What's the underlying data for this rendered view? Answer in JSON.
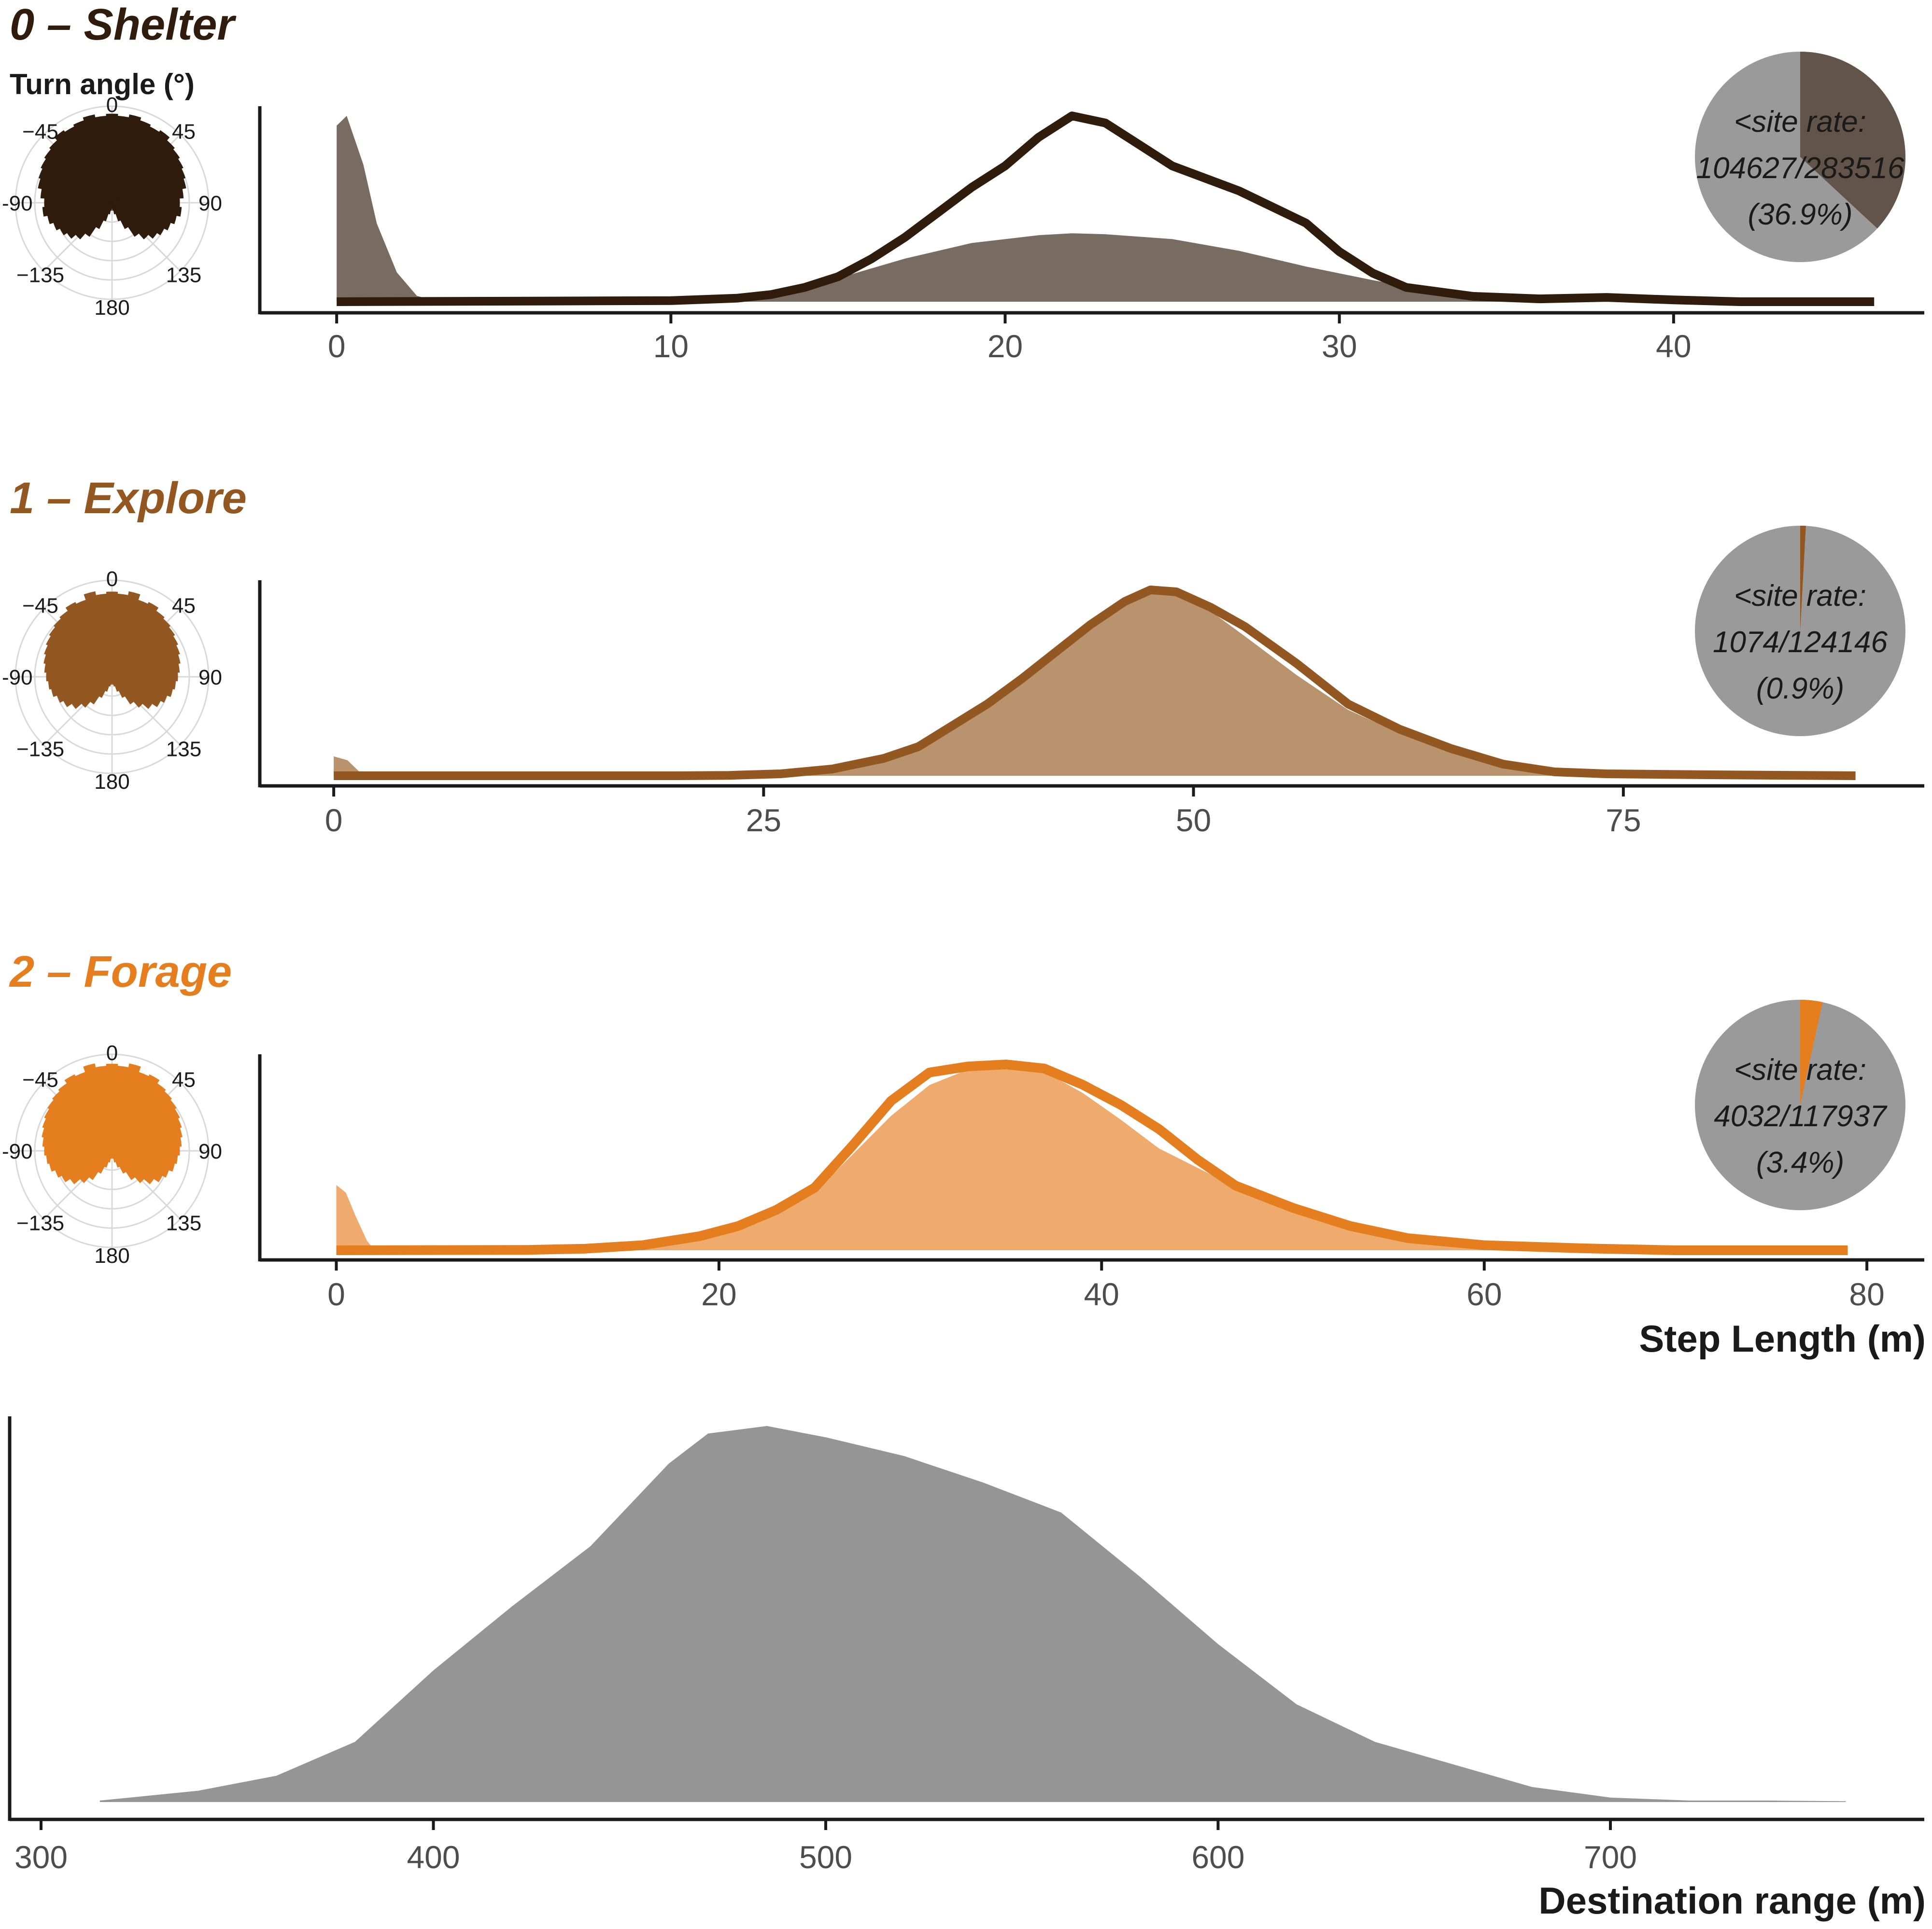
{
  "colors": {
    "shelter": "#2f1c0c",
    "explore": "#935721",
    "forage": "#e57e1e",
    "pie_grey": "#9a9a9a",
    "range_grey": "#959595",
    "axis": "#1a1a1a",
    "grid": "#d9d9d9"
  },
  "polar_header": "Turn angle (°)",
  "polar_ticks": [
    "0",
    "45",
    "90",
    "135",
    "180",
    "−135",
    "-90",
    "−45"
  ],
  "step_axis_label": "Step Length (m)",
  "chart_data": [
    {
      "type": "area",
      "id": "shelter",
      "title": "0 – Shelter",
      "xlabel": "Step Length (m)",
      "xlim": [
        -2.3,
        47.5
      ],
      "xticks": [
        0,
        10,
        20,
        30,
        40
      ],
      "fill_density": [
        [
          0,
          0.9
        ],
        [
          0.3,
          0.95
        ],
        [
          0.8,
          0.7
        ],
        [
          1.2,
          0.4
        ],
        [
          1.8,
          0.15
        ],
        [
          2.4,
          0.03
        ],
        [
          3,
          0
        ],
        [
          9,
          0
        ],
        [
          11,
          0.01
        ],
        [
          13,
          0.04
        ],
        [
          15,
          0.12
        ],
        [
          17,
          0.22
        ],
        [
          19,
          0.3
        ],
        [
          21,
          0.34
        ],
        [
          22,
          0.35
        ],
        [
          23,
          0.345
        ],
        [
          25,
          0.32
        ],
        [
          27,
          0.26
        ],
        [
          29,
          0.18
        ],
        [
          31,
          0.11
        ],
        [
          33,
          0.05
        ],
        [
          35,
          0.02
        ],
        [
          37,
          0.008
        ],
        [
          40,
          0
        ],
        [
          46,
          0
        ]
      ],
      "line_density": [
        [
          0,
          0
        ],
        [
          10,
          0.003
        ],
        [
          12,
          0.01
        ],
        [
          13,
          0.02
        ],
        [
          14,
          0.04
        ],
        [
          15,
          0.07
        ],
        [
          16,
          0.12
        ],
        [
          17,
          0.18
        ],
        [
          18,
          0.25
        ],
        [
          19,
          0.32
        ],
        [
          20,
          0.38
        ],
        [
          21,
          0.46
        ],
        [
          22,
          0.52
        ],
        [
          23,
          0.5
        ],
        [
          24,
          0.44
        ],
        [
          25,
          0.38
        ],
        [
          27,
          0.31
        ],
        [
          29,
          0.22
        ],
        [
          30,
          0.14
        ],
        [
          31,
          0.08
        ],
        [
          32,
          0.04
        ],
        [
          34,
          0.015
        ],
        [
          36,
          0.008
        ],
        [
          38,
          0.012
        ],
        [
          40,
          0.005
        ],
        [
          42,
          0
        ],
        [
          46,
          0
        ]
      ],
      "pie": {
        "label_lines": [
          "<site rate:",
          "104627/283516",
          "(36.9%)"
        ],
        "numerator": 104627,
        "denominator": 283516,
        "percent": 36.9
      },
      "polar_radii": [
        0.92,
        0.9,
        0.93,
        0.9,
        0.88,
        0.9,
        0.86,
        0.84,
        0.82,
        0.8,
        0.78,
        0.74,
        0.7,
        0.72,
        0.68,
        0.64,
        0.6,
        0.56,
        0.5,
        0.42,
        0.3,
        0.2,
        0.12,
        0.08,
        0.06,
        0.08,
        0.12,
        0.2,
        0.3,
        0.42,
        0.5,
        0.56,
        0.6,
        0.64,
        0.68,
        0.72,
        0.7,
        0.74,
        0.78,
        0.8,
        0.82,
        0.84,
        0.86,
        0.9,
        0.88,
        0.9,
        0.93,
        0.9
      ]
    },
    {
      "type": "area",
      "id": "explore",
      "title": "1 – Explore",
      "xlabel": "Step Length (m)",
      "xlim": [
        -4.3,
        92.5
      ],
      "xticks": [
        0,
        25,
        50,
        75
      ],
      "fill_density": [
        [
          0,
          0.1
        ],
        [
          0.8,
          0.08
        ],
        [
          1.5,
          0.02
        ],
        [
          2,
          0
        ],
        [
          24,
          0
        ],
        [
          26,
          0.01
        ],
        [
          28,
          0.03
        ],
        [
          31,
          0.08
        ],
        [
          34,
          0.17
        ],
        [
          37,
          0.32
        ],
        [
          40,
          0.52
        ],
        [
          43,
          0.7
        ],
        [
          45,
          0.83
        ],
        [
          47,
          0.93
        ],
        [
          48,
          0.96
        ],
        [
          49,
          0.94
        ],
        [
          51,
          0.85
        ],
        [
          53,
          0.72
        ],
        [
          56,
          0.52
        ],
        [
          59,
          0.34
        ],
        [
          62,
          0.22
        ],
        [
          65,
          0.13
        ],
        [
          68,
          0.06
        ],
        [
          71,
          0.02
        ],
        [
          75,
          0.005
        ],
        [
          80,
          0
        ],
        [
          88.5,
          0
        ]
      ],
      "line_density": [
        [
          0,
          0
        ],
        [
          20,
          0
        ],
        [
          23,
          0.002
        ],
        [
          26,
          0.01
        ],
        [
          29,
          0.035
        ],
        [
          32,
          0.09
        ],
        [
          34,
          0.15
        ],
        [
          36,
          0.26
        ],
        [
          38,
          0.37
        ],
        [
          40,
          0.5
        ],
        [
          42,
          0.64
        ],
        [
          44,
          0.78
        ],
        [
          46,
          0.9
        ],
        [
          47.5,
          0.96
        ],
        [
          49,
          0.95
        ],
        [
          51,
          0.87
        ],
        [
          53,
          0.77
        ],
        [
          56,
          0.58
        ],
        [
          59,
          0.37
        ],
        [
          62,
          0.24
        ],
        [
          65,
          0.14
        ],
        [
          68,
          0.06
        ],
        [
          71,
          0.02
        ],
        [
          74,
          0.01
        ],
        [
          80,
          0.005
        ],
        [
          88.5,
          0
        ]
      ],
      "pie": {
        "label_lines": [
          "<site rate:",
          "1074/124146",
          "(0.9%)"
        ],
        "numerator": 1074,
        "denominator": 124146,
        "percent": 0.9
      },
      "polar_radii": [
        0.88,
        0.86,
        0.9,
        0.84,
        0.86,
        0.82,
        0.8,
        0.78,
        0.76,
        0.74,
        0.72,
        0.7,
        0.68,
        0.66,
        0.64,
        0.6,
        0.56,
        0.5,
        0.42,
        0.34,
        0.24,
        0.16,
        0.1,
        0.08,
        0.07,
        0.08,
        0.1,
        0.16,
        0.24,
        0.34,
        0.42,
        0.5,
        0.56,
        0.6,
        0.64,
        0.66,
        0.68,
        0.7,
        0.72,
        0.74,
        0.76,
        0.78,
        0.8,
        0.82,
        0.86,
        0.84,
        0.9,
        0.86
      ]
    },
    {
      "type": "area",
      "id": "forage",
      "title": "2 – Forage",
      "xlabel": "Step Length (m)",
      "xlim": [
        -4,
        83
      ],
      "xticks": [
        0,
        20,
        40,
        60,
        80
      ],
      "fill_density": [
        [
          0,
          0.34
        ],
        [
          0.5,
          0.3
        ],
        [
          1,
          0.18
        ],
        [
          1.6,
          0.05
        ],
        [
          2,
          0
        ],
        [
          10,
          0
        ],
        [
          13,
          0.005
        ],
        [
          16,
          0.02
        ],
        [
          19,
          0.06
        ],
        [
          22,
          0.14
        ],
        [
          25,
          0.3
        ],
        [
          27,
          0.5
        ],
        [
          29,
          0.7
        ],
        [
          31,
          0.86
        ],
        [
          33,
          0.94
        ],
        [
          35,
          0.97
        ],
        [
          37,
          0.93
        ],
        [
          39,
          0.82
        ],
        [
          41,
          0.68
        ],
        [
          43,
          0.53
        ],
        [
          46,
          0.38
        ],
        [
          49,
          0.26
        ],
        [
          52,
          0.15
        ],
        [
          55,
          0.08
        ],
        [
          58,
          0.04
        ],
        [
          62,
          0.015
        ],
        [
          66,
          0.005
        ],
        [
          70,
          0
        ],
        [
          79,
          0
        ]
      ],
      "line_density": [
        [
          0,
          0
        ],
        [
          10,
          0.002
        ],
        [
          13,
          0.008
        ],
        [
          16,
          0.025
        ],
        [
          19,
          0.07
        ],
        [
          21,
          0.12
        ],
        [
          23,
          0.2
        ],
        [
          25,
          0.31
        ],
        [
          27,
          0.52
        ],
        [
          29,
          0.74
        ],
        [
          31,
          0.88
        ],
        [
          33,
          0.91
        ],
        [
          35,
          0.92
        ],
        [
          37,
          0.9
        ],
        [
          39,
          0.82
        ],
        [
          41,
          0.72
        ],
        [
          43,
          0.6
        ],
        [
          45,
          0.45
        ],
        [
          47,
          0.32
        ],
        [
          50,
          0.21
        ],
        [
          53,
          0.12
        ],
        [
          56,
          0.06
        ],
        [
          60,
          0.025
        ],
        [
          65,
          0.01
        ],
        [
          70,
          0
        ],
        [
          79,
          0
        ]
      ],
      "pie": {
        "label_lines": [
          "<site rate:",
          "4032/117937",
          "(3.4%)"
        ],
        "numerator": 4032,
        "denominator": 117937,
        "percent": 3.4
      },
      "polar_radii": [
        0.9,
        0.88,
        0.92,
        0.86,
        0.88,
        0.84,
        0.82,
        0.8,
        0.78,
        0.76,
        0.74,
        0.72,
        0.7,
        0.68,
        0.66,
        0.62,
        0.58,
        0.52,
        0.44,
        0.36,
        0.26,
        0.18,
        0.12,
        0.08,
        0.07,
        0.08,
        0.12,
        0.18,
        0.26,
        0.36,
        0.44,
        0.52,
        0.58,
        0.62,
        0.66,
        0.68,
        0.7,
        0.72,
        0.74,
        0.76,
        0.78,
        0.8,
        0.82,
        0.84,
        0.88,
        0.86,
        0.92,
        0.88
      ]
    },
    {
      "type": "area",
      "id": "range",
      "title": "",
      "xlabel": "Destination range (m)",
      "xlim": [
        292,
        780
      ],
      "xticks": [
        300,
        400,
        500,
        600,
        700
      ],
      "fill_density": [
        [
          315,
          0.004
        ],
        [
          340,
          0.03
        ],
        [
          360,
          0.07
        ],
        [
          380,
          0.16
        ],
        [
          400,
          0.35
        ],
        [
          420,
          0.52
        ],
        [
          440,
          0.68
        ],
        [
          460,
          0.9
        ],
        [
          470,
          0.98
        ],
        [
          485,
          1.0
        ],
        [
          500,
          0.97
        ],
        [
          520,
          0.92
        ],
        [
          540,
          0.85
        ],
        [
          560,
          0.77
        ],
        [
          580,
          0.6
        ],
        [
          600,
          0.42
        ],
        [
          620,
          0.26
        ],
        [
          640,
          0.16
        ],
        [
          660,
          0.1
        ],
        [
          680,
          0.04
        ],
        [
          700,
          0.012
        ],
        [
          720,
          0.004
        ],
        [
          740,
          0.004
        ],
        [
          760,
          0.002
        ]
      ]
    }
  ]
}
